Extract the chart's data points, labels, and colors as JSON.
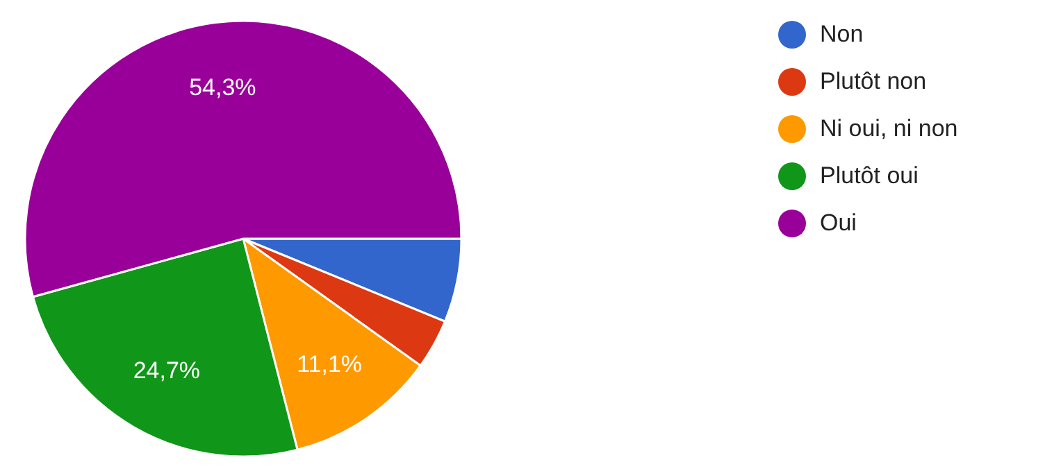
{
  "chart_data": {
    "type": "pie",
    "categories": [
      "Non",
      "Plutôt non",
      "Ni oui, ni non",
      "Plutôt oui",
      "Oui"
    ],
    "values": [
      6.2,
      3.7,
      11.1,
      24.7,
      54.3
    ],
    "colors": [
      "#3366cc",
      "#dc3912",
      "#ff9900",
      "#109618",
      "#990099"
    ],
    "value_labels": [
      null,
      null,
      "11,1%",
      "24,7%",
      "54,3%"
    ],
    "legend": "top right"
  }
}
